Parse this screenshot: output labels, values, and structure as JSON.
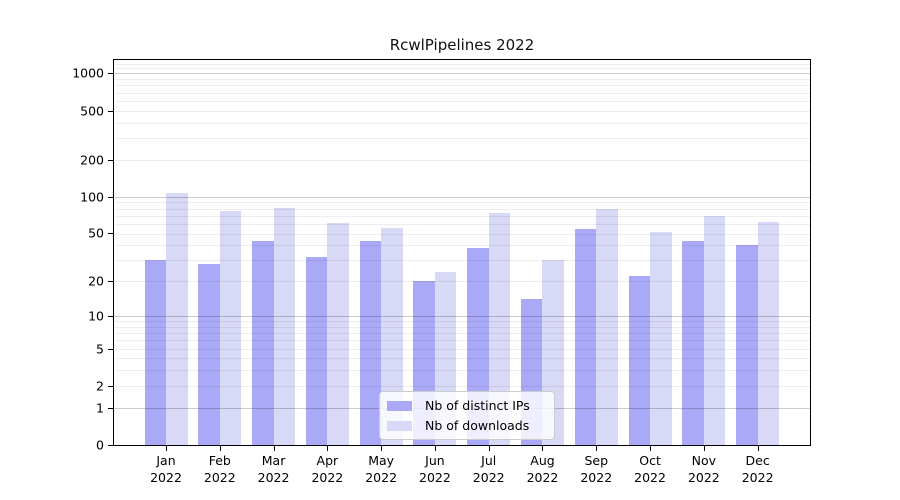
{
  "title": "RcwlPipelines 2022",
  "legend": {
    "items": [
      {
        "label": "Nb of distinct IPs"
      },
      {
        "label": "Nb of downloads"
      }
    ]
  },
  "chart_data": {
    "type": "bar",
    "title": "RcwlPipelines 2022",
    "categories": [
      "Jan",
      "Feb",
      "Mar",
      "Apr",
      "May",
      "Jun",
      "Jul",
      "Aug",
      "Sep",
      "Oct",
      "Nov",
      "Dec"
    ],
    "category_year": "2022",
    "series": [
      {
        "name": "Nb of distinct IPs",
        "color": "#a9a9f8",
        "values": [
          30,
          28,
          43,
          32,
          43,
          20,
          38,
          14,
          54,
          22,
          43,
          40
        ]
      },
      {
        "name": "Nb of downloads",
        "color": "#d8d8f7",
        "values": [
          108,
          76,
          81,
          61,
          56,
          24,
          74,
          30,
          79,
          51,
          70,
          62
        ]
      }
    ],
    "xlabel": "",
    "ylabel": "",
    "yscale": "log1p",
    "y_ticks": [
      0,
      1,
      2,
      5,
      10,
      20,
      50,
      100,
      200,
      500,
      1000
    ],
    "y_major_gridlines": [
      1,
      10,
      100,
      1000
    ],
    "y_minor_gridlines": [
      2,
      3,
      4,
      5,
      6,
      7,
      8,
      9,
      20,
      30,
      40,
      50,
      60,
      70,
      80,
      90,
      200,
      300,
      400,
      500,
      600,
      700,
      800,
      900,
      1100,
      1200
    ],
    "ylim": [
      0,
      1280
    ],
    "grid": true,
    "legend_position": "inside-bottom-center",
    "bar_colors": {
      "distinct_ips": "#a9a9f8",
      "downloads": "#d8d8f7"
    }
  }
}
